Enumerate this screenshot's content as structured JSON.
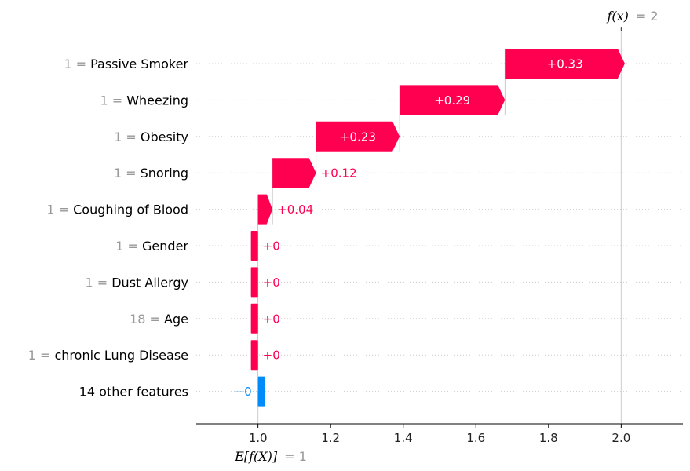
{
  "chart_data": {
    "type": "waterfall",
    "base_value": 1,
    "output_value": 2,
    "base_label": "E[f(X)]",
    "output_label": "f(x)",
    "base_value_text": "= 1",
    "output_value_text": "= 2",
    "features": [
      {
        "value_text": "1 =",
        "name": "Passive Smoker",
        "contribution": 0.33,
        "label": "+0.33"
      },
      {
        "value_text": "1 =",
        "name": "Wheezing",
        "contribution": 0.29,
        "label": "+0.29"
      },
      {
        "value_text": "1 =",
        "name": "Obesity",
        "contribution": 0.23,
        "label": "+0.23"
      },
      {
        "value_text": "1 =",
        "name": "Snoring",
        "contribution": 0.12,
        "label": "+0.12"
      },
      {
        "value_text": "1 =",
        "name": "Coughing of Blood",
        "contribution": 0.04,
        "label": "+0.04"
      },
      {
        "value_text": "1 =",
        "name": "Gender",
        "contribution": 0.0,
        "label": "+0"
      },
      {
        "value_text": "1 =",
        "name": "Dust Allergy",
        "contribution": 0.0,
        "label": "+0"
      },
      {
        "value_text": "18 =",
        "name": "Age",
        "contribution": 0.0,
        "label": "+0"
      },
      {
        "value_text": "1 =",
        "name": "chronic Lung Disease",
        "contribution": 0.0,
        "label": "+0"
      },
      {
        "value_text": "",
        "name": "14 other features",
        "contribution": -0.0,
        "label": "−0"
      }
    ],
    "x_ticks": [
      "1.0",
      "1.2",
      "1.4",
      "1.6",
      "1.8",
      "2.0"
    ],
    "x_tick_values": [
      1.0,
      1.2,
      1.4,
      1.6,
      1.8,
      2.0
    ],
    "xlim": [
      0.83,
      2.17
    ],
    "grid": "horizontal dotted",
    "colors": {
      "positive": "#ff0051",
      "negative": "#008bfb",
      "feature_value": "#999999"
    }
  }
}
